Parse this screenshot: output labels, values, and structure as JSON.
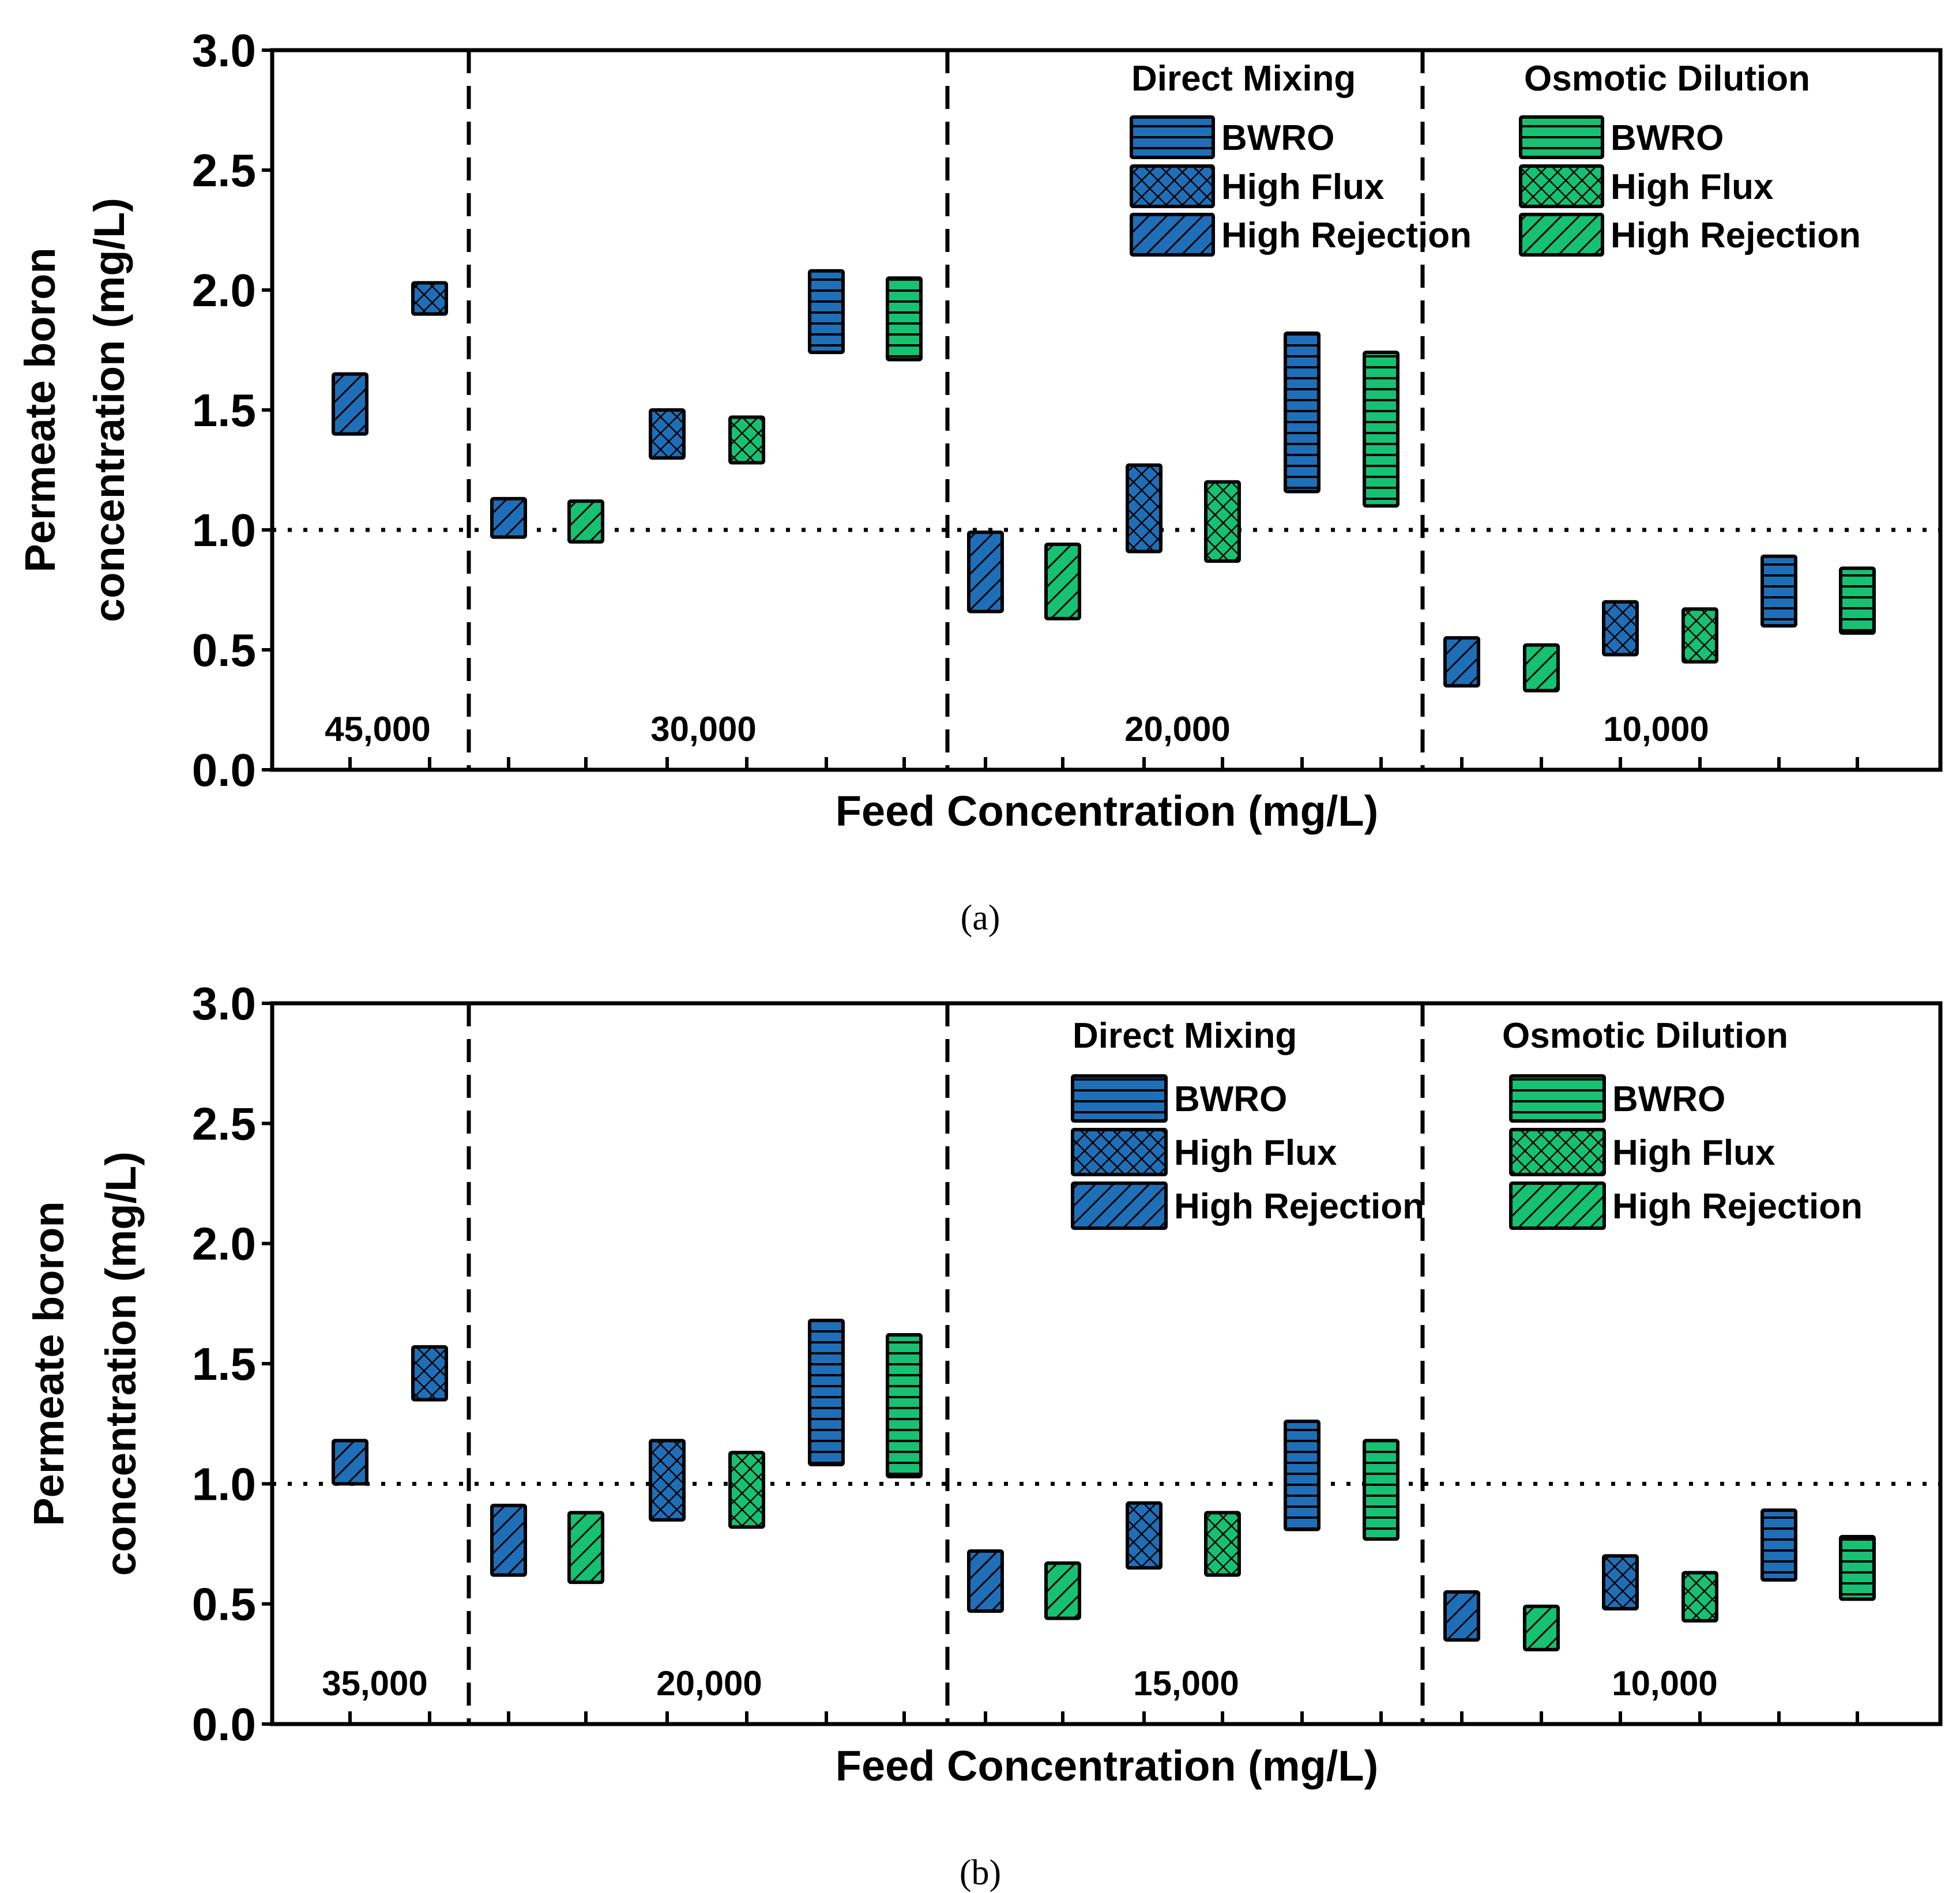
{
  "colors": {
    "direct_mixing": "#1f6fb8",
    "osmotic_dilution": "#16c172",
    "outline": "#000000"
  },
  "chart_data": [
    {
      "type": "bar",
      "caption": "(a)",
      "xlabel": "Feed Concentration (mg/L)",
      "ylabel_line1": "Permeate boron",
      "ylabel_line2": "concentration (mg/L)",
      "ylim": [
        0.0,
        3.0
      ],
      "yticks": [
        "0.0",
        "0.5",
        "1.0",
        "1.5",
        "2.0",
        "2.5",
        "3.0"
      ],
      "reference_line": 1.0,
      "legend": {
        "dm_title": "Direct Mixing",
        "od_title": "Osmotic Dilution",
        "entries": [
          {
            "label": "BWRO",
            "pattern": "horizontal"
          },
          {
            "label": "High Flux",
            "pattern": "crosshatch"
          },
          {
            "label": "High Rejection",
            "pattern": "diagonal"
          }
        ]
      },
      "groups": [
        {
          "label": "45,000",
          "slots": 2,
          "bars": [
            {
              "slot": 0,
              "membrane": "High Rejection",
              "method": "Direct Mixing",
              "low": 1.4,
              "high": 1.65
            },
            {
              "slot": 1,
              "membrane": "High Flux",
              "method": "Direct Mixing",
              "low": 1.9,
              "high": 2.03
            }
          ]
        },
        {
          "label": "30,000",
          "slots": 6,
          "bars": [
            {
              "slot": 0,
              "membrane": "High Rejection",
              "method": "Direct Mixing",
              "low": 0.97,
              "high": 1.13
            },
            {
              "slot": 1,
              "membrane": "High Rejection",
              "method": "Osmotic Dilution",
              "low": 0.95,
              "high": 1.12
            },
            {
              "slot": 2,
              "membrane": "High Flux",
              "method": "Direct Mixing",
              "low": 1.3,
              "high": 1.5
            },
            {
              "slot": 3,
              "membrane": "High Flux",
              "method": "Osmotic Dilution",
              "low": 1.28,
              "high": 1.47
            },
            {
              "slot": 4,
              "membrane": "BWRO",
              "method": "Direct Mixing",
              "low": 1.74,
              "high": 2.08
            },
            {
              "slot": 5,
              "membrane": "BWRO",
              "method": "Osmotic Dilution",
              "low": 1.71,
              "high": 2.05
            }
          ]
        },
        {
          "label": "20,000",
          "slots": 6,
          "bars": [
            {
              "slot": 0,
              "membrane": "High Rejection",
              "method": "Direct Mixing",
              "low": 0.66,
              "high": 0.99
            },
            {
              "slot": 1,
              "membrane": "High Rejection",
              "method": "Osmotic Dilution",
              "low": 0.63,
              "high": 0.94
            },
            {
              "slot": 2,
              "membrane": "High Flux",
              "method": "Direct Mixing",
              "low": 0.91,
              "high": 1.27
            },
            {
              "slot": 3,
              "membrane": "High Flux",
              "method": "Osmotic Dilution",
              "low": 0.87,
              "high": 1.2
            },
            {
              "slot": 4,
              "membrane": "BWRO",
              "method": "Direct Mixing",
              "low": 1.16,
              "high": 1.82
            },
            {
              "slot": 5,
              "membrane": "BWRO",
              "method": "Osmotic Dilution",
              "low": 1.1,
              "high": 1.74
            }
          ]
        },
        {
          "label": "10,000",
          "slots": 6,
          "bars": [
            {
              "slot": 0,
              "membrane": "High Rejection",
              "method": "Direct Mixing",
              "low": 0.35,
              "high": 0.55
            },
            {
              "slot": 1,
              "membrane": "High Rejection",
              "method": "Osmotic Dilution",
              "low": 0.33,
              "high": 0.52
            },
            {
              "slot": 2,
              "membrane": "High Flux",
              "method": "Direct Mixing",
              "low": 0.48,
              "high": 0.7
            },
            {
              "slot": 3,
              "membrane": "High Flux",
              "method": "Osmotic Dilution",
              "low": 0.45,
              "high": 0.67
            },
            {
              "slot": 4,
              "membrane": "BWRO",
              "method": "Direct Mixing",
              "low": 0.6,
              "high": 0.89
            },
            {
              "slot": 5,
              "membrane": "BWRO",
              "method": "Osmotic Dilution",
              "low": 0.57,
              "high": 0.84
            }
          ]
        }
      ]
    },
    {
      "type": "bar",
      "caption": "(b)",
      "xlabel": "Feed Concentration (mg/L)",
      "ylabel_line1": "Permeate boron",
      "ylabel_line2": "concentration (mg/L)",
      "ylim": [
        0.0,
        3.0
      ],
      "yticks": [
        "0.0",
        "0.5",
        "1.0",
        "1.5",
        "2.0",
        "2.5",
        "3.0"
      ],
      "reference_line": 1.0,
      "legend": {
        "dm_title": "Direct Mixing",
        "od_title": "Osmotic Dilution",
        "entries": [
          {
            "label": "BWRO",
            "pattern": "horizontal"
          },
          {
            "label": "High Flux",
            "pattern": "crosshatch"
          },
          {
            "label": "High Rejection",
            "pattern": "diagonal"
          }
        ]
      },
      "groups": [
        {
          "label": "35,000",
          "slots": 2,
          "bars": [
            {
              "slot": 0,
              "membrane": "High Rejection",
              "method": "Direct Mixing",
              "low": 1.0,
              "high": 1.18
            },
            {
              "slot": 1,
              "membrane": "High Flux",
              "method": "Direct Mixing",
              "low": 1.35,
              "high": 1.57
            }
          ]
        },
        {
          "label": "20,000",
          "slots": 6,
          "bars": [
            {
              "slot": 0,
              "membrane": "High Rejection",
              "method": "Direct Mixing",
              "low": 0.62,
              "high": 0.91
            },
            {
              "slot": 1,
              "membrane": "High Rejection",
              "method": "Osmotic Dilution",
              "low": 0.59,
              "high": 0.88
            },
            {
              "slot": 2,
              "membrane": "High Flux",
              "method": "Direct Mixing",
              "low": 0.85,
              "high": 1.18
            },
            {
              "slot": 3,
              "membrane": "High Flux",
              "method": "Osmotic Dilution",
              "low": 0.82,
              "high": 1.13
            },
            {
              "slot": 4,
              "membrane": "BWRO",
              "method": "Direct Mixing",
              "low": 1.08,
              "high": 1.68
            },
            {
              "slot": 5,
              "membrane": "BWRO",
              "method": "Osmotic Dilution",
              "low": 1.03,
              "high": 1.62
            }
          ]
        },
        {
          "label": "15,000",
          "slots": 6,
          "bars": [
            {
              "slot": 0,
              "membrane": "High Rejection",
              "method": "Direct Mixing",
              "low": 0.47,
              "high": 0.72
            },
            {
              "slot": 1,
              "membrane": "High Rejection",
              "method": "Osmotic Dilution",
              "low": 0.44,
              "high": 0.67
            },
            {
              "slot": 2,
              "membrane": "High Flux",
              "method": "Direct Mixing",
              "low": 0.65,
              "high": 0.92
            },
            {
              "slot": 3,
              "membrane": "High Flux",
              "method": "Osmotic Dilution",
              "low": 0.62,
              "high": 0.88
            },
            {
              "slot": 4,
              "membrane": "BWRO",
              "method": "Direct Mixing",
              "low": 0.81,
              "high": 1.26
            },
            {
              "slot": 5,
              "membrane": "BWRO",
              "method": "Osmotic Dilution",
              "low": 0.77,
              "high": 1.18
            }
          ]
        },
        {
          "label": "10,000",
          "slots": 6,
          "bars": [
            {
              "slot": 0,
              "membrane": "High Rejection",
              "method": "Direct Mixing",
              "low": 0.35,
              "high": 0.55
            },
            {
              "slot": 1,
              "membrane": "High Rejection",
              "method": "Osmotic Dilution",
              "low": 0.31,
              "high": 0.49
            },
            {
              "slot": 2,
              "membrane": "High Flux",
              "method": "Direct Mixing",
              "low": 0.48,
              "high": 0.7
            },
            {
              "slot": 3,
              "membrane": "High Flux",
              "method": "Osmotic Dilution",
              "low": 0.43,
              "high": 0.63
            },
            {
              "slot": 4,
              "membrane": "BWRO",
              "method": "Direct Mixing",
              "low": 0.6,
              "high": 0.89
            },
            {
              "slot": 5,
              "membrane": "BWRO",
              "method": "Osmotic Dilution",
              "low": 0.52,
              "high": 0.78
            }
          ]
        }
      ]
    }
  ]
}
